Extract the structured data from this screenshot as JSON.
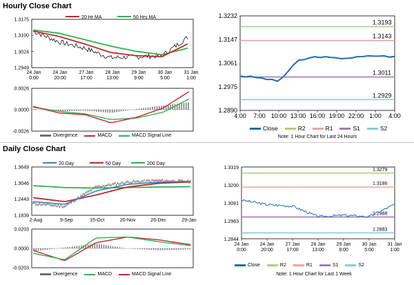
{
  "hourly": {
    "title": "Hourly Close Chart",
    "price": {
      "legend": [
        {
          "name": "20 Hr MA",
          "color": "#c0262d"
        },
        {
          "name": "50 Hrs MA",
          "color": "#2fb04e"
        }
      ],
      "y_ticks": [
        "1.3175",
        "1.3100",
        "1.3024",
        "1.2949"
      ],
      "ylim": [
        1.2949,
        1.3175
      ],
      "x_ticks": [
        [
          "24 Jan",
          "0:00"
        ],
        [
          "24 Jan",
          "20:00"
        ],
        [
          "27 Jan",
          "17:00"
        ],
        [
          "28 Jan",
          "13:00"
        ],
        [
          "29 Jan",
          "9:00"
        ],
        [
          "30 Jan",
          "5:00"
        ],
        [
          "31 Jan",
          "1:00"
        ]
      ]
    },
    "macd": {
      "y_ticks": [
        "0.0026",
        "0.0000",
        "-0.0026"
      ],
      "ylim": [
        -0.0026,
        0.0026
      ],
      "legend": [
        {
          "name": "Divergence",
          "color": "#6e6e6e"
        },
        {
          "name": "MACD",
          "color": "#c0262d"
        },
        {
          "name": "MACD Signal Line",
          "color": "#2fb04e"
        }
      ]
    },
    "pivot": {
      "y_ticks": [
        "1.3232",
        "1.3147",
        "1.3061",
        "1.2975",
        "1.2890"
      ],
      "ylim": [
        1.289,
        1.3232
      ],
      "x_ticks": [
        "4:00",
        "7:00",
        "10:00",
        "13:00",
        "16:00",
        "19:00",
        "22:00",
        "1:00",
        "4:00"
      ],
      "levels": [
        {
          "name": "R2",
          "value": 1.3193,
          "label": "1.3193",
          "color": "#a9cf7e"
        },
        {
          "name": "R1",
          "value": 1.3143,
          "label": "1.3143",
          "color": "#e8a6a0"
        },
        {
          "name": "S1",
          "value": 1.3011,
          "label": "1.3011",
          "color": "#9a7fbd"
        },
        {
          "name": "S2",
          "value": 1.2929,
          "label": "1.2929",
          "color": "#8ac8de"
        }
      ],
      "close_color": "#1f6cb0",
      "legend": [
        "Close",
        "R2",
        "R1",
        "S1",
        "S2"
      ],
      "note": "Note: 1 Hour Chart for Last 24 Hours"
    }
  },
  "daily": {
    "title": "Daily Close Chart",
    "price": {
      "legend": [
        {
          "name": "20 Day",
          "color": "#3e7ec2"
        },
        {
          "name": "50 Day",
          "color": "#c0262d"
        },
        {
          "name": "200 Day",
          "color": "#2fb04e"
        }
      ],
      "y_ticks": [
        "1.3649",
        "1.3046",
        "1.2443",
        "1.1839"
      ],
      "ylim": [
        1.1839,
        1.3649
      ],
      "x_ticks": [
        "2-Aug",
        "9-Sep",
        "15-Oct",
        "20-Nov",
        "26-Dec",
        "29-Jan"
      ]
    },
    "macd": {
      "y_ticks": [
        "0.0203",
        "0.0000",
        "-0.0203"
      ],
      "ylim": [
        -0.0203,
        0.0203
      ],
      "legend": [
        {
          "name": "Divergence",
          "color": "#6e6e6e"
        },
        {
          "name": "MACD",
          "color": "#2fb04e"
        },
        {
          "name": "MACD Signal Line",
          "color": "#c0262d"
        }
      ]
    },
    "pivot": {
      "y_ticks": [
        "1.3319",
        "1.3200",
        "1.3081",
        "1.2963",
        "1.2844"
      ],
      "ylim": [
        1.2844,
        1.3319
      ],
      "x_ticks": [
        [
          "24 Jan",
          "0:00"
        ],
        [
          "24 Jan",
          "20:00"
        ],
        [
          "27 Jan",
          "17:00"
        ],
        [
          "28 Jan",
          "13:00"
        ],
        [
          "29 Jan",
          "9:00"
        ],
        [
          "30 Jan",
          "5:00"
        ],
        [
          "31 Jan",
          "1:00"
        ]
      ],
      "levels": [
        {
          "name": "R2",
          "value": 1.3279,
          "label": "1.3279",
          "color": "#a9cf7e"
        },
        {
          "name": "R1",
          "value": 1.3186,
          "label": "1.3186",
          "color": "#e8a6a0"
        },
        {
          "name": "S1",
          "value": 1.2988,
          "label": "1.2988",
          "color": "#9a7fbd"
        },
        {
          "name": "S2",
          "value": 1.2883,
          "label": "1.2883",
          "color": "#8ac8de"
        }
      ],
      "close_color": "#1f6cb0",
      "legend": [
        "Close",
        "R2",
        "R1",
        "S1",
        "S2"
      ],
      "note": "Note: 1 Hour Chart for Last 1 Week"
    }
  },
  "chart_data": [
    {
      "type": "line",
      "xlabel": "",
      "ylabel": "",
      "x": [
        "24 Jan 0:00",
        "24 Jan 20:00",
        "27 Jan 17:00",
        "28 Jan 13:00",
        "29 Jan 9:00",
        "30 Jan 5:00",
        "31 Jan 1:00"
      ],
      "series": [
        {
          "name": "",
          "values": [
            1.312,
            1.307,
            1.304,
            1.2995,
            1.3,
            1.3005,
            1.309
          ]
        },
        {
          "name": "20 Hr MA",
          "values": [
            1.312,
            1.3095,
            1.306,
            1.302,
            1.3005,
            1.3,
            1.306
          ]
        },
        {
          "name": "50 Hrs MA",
          "values": [
            1.3125,
            1.311,
            1.308,
            1.305,
            1.3025,
            1.301,
            1.304
          ]
        }
      ],
      "ylim": [
        1.2949,
        1.3175
      ]
    },
    {
      "type": "line",
      "xlabel": "",
      "ylabel": "",
      "x": [
        "24 Jan 0:00",
        "24 Jan 20:00",
        "27 Jan 17:00",
        "28 Jan 13:00",
        "29 Jan 9:00",
        "30 Jan 5:00",
        "31 Jan 1:00"
      ],
      "series": [
        {
          "name": "MACD",
          "values": [
            0.0004,
            -0.0004,
            -0.0006,
            -0.0016,
            -0.0009,
            0.0002,
            0.0022
          ]
        },
        {
          "name": "MACD Signal Line",
          "values": [
            0.0003,
            -0.0002,
            -0.0005,
            -0.0012,
            -0.001,
            -0.0003,
            0.0013
          ]
        },
        {
          "name": "Divergence",
          "values": [
            0.0001,
            -0.0002,
            -0.0001,
            -0.0004,
            0.0001,
            0.0005,
            0.0009
          ]
        }
      ],
      "ylim": [
        -0.0026,
        0.0026
      ]
    },
    {
      "type": "line",
      "xlabel": "",
      "ylabel": "",
      "x": [
        "4:00",
        "7:00",
        "10:00",
        "13:00",
        "16:00",
        "19:00",
        "22:00",
        "1:00",
        "4:00"
      ],
      "series": [
        {
          "name": "Close",
          "values": [
            1.3015,
            1.3008,
            1.2995,
            1.307,
            1.3085,
            1.3078,
            1.3082,
            1.3088,
            1.3084
          ]
        },
        {
          "name": "R2",
          "values": [
            1.3193,
            1.3193,
            1.3193,
            1.3193,
            1.3193,
            1.3193,
            1.3193,
            1.3193,
            1.3193
          ]
        },
        {
          "name": "R1",
          "values": [
            1.3143,
            1.3143,
            1.3143,
            1.3143,
            1.3143,
            1.3143,
            1.3143,
            1.3143,
            1.3143
          ]
        },
        {
          "name": "S1",
          "values": [
            1.3011,
            1.3011,
            1.3011,
            1.3011,
            1.3011,
            1.3011,
            1.3011,
            1.3011,
            1.3011
          ]
        },
        {
          "name": "S2",
          "values": [
            1.2929,
            1.2929,
            1.2929,
            1.2929,
            1.2929,
            1.2929,
            1.2929,
            1.2929,
            1.2929
          ]
        }
      ],
      "ylim": [
        1.289,
        1.3232
      ]
    },
    {
      "type": "line",
      "xlabel": "",
      "ylabel": "",
      "x": [
        "2-Aug",
        "9-Sep",
        "15-Oct",
        "20-Nov",
        "26-Dec",
        "29-Jan"
      ],
      "series": [
        {
          "name": "",
          "values": [
            1.228,
            1.217,
            1.29,
            1.308,
            1.314,
            1.31
          ]
        },
        {
          "name": "20 Day",
          "values": [
            1.235,
            1.225,
            1.275,
            1.3,
            1.308,
            1.311
          ]
        },
        {
          "name": "50 Day",
          "values": [
            1.25,
            1.235,
            1.26,
            1.29,
            1.304,
            1.309
          ]
        },
        {
          "name": "200 Day",
          "values": [
            1.295,
            1.288,
            1.286,
            1.288,
            1.29,
            1.291
          ]
        }
      ],
      "ylim": [
        1.1839,
        1.3649
      ]
    },
    {
      "type": "line",
      "xlabel": "",
      "ylabel": "",
      "x": [
        "2-Aug",
        "9-Sep",
        "15-Oct",
        "20-Nov",
        "26-Dec",
        "29-Jan"
      ],
      "series": [
        {
          "name": "MACD",
          "values": [
            -0.005,
            -0.012,
            0.011,
            0.012,
            0.007,
            0.003
          ]
        },
        {
          "name": "MACD Signal Line",
          "values": [
            -0.002,
            -0.013,
            0.006,
            0.012,
            0.009,
            0.004
          ]
        },
        {
          "name": "Divergence",
          "values": [
            -0.003,
            0.001,
            0.005,
            0.0,
            -0.002,
            -0.001
          ]
        }
      ],
      "ylim": [
        -0.0203,
        0.0203
      ]
    },
    {
      "type": "line",
      "xlabel": "",
      "ylabel": "",
      "x": [
        "24 Jan 0:00",
        "24 Jan 20:00",
        "27 Jan 17:00",
        "28 Jan 13:00",
        "29 Jan 9:00",
        "30 Jan 5:00",
        "31 Jan 1:00"
      ],
      "series": [
        {
          "name": "Close",
          "values": [
            1.31,
            1.307,
            1.306,
            1.299,
            1.3,
            1.299,
            1.3072
          ]
        },
        {
          "name": "R2",
          "values": [
            1.3279,
            1.3279,
            1.3279,
            1.3279,
            1.3279,
            1.3279,
            1.3279
          ]
        },
        {
          "name": "R1",
          "values": [
            1.3186,
            1.3186,
            1.3186,
            1.3186,
            1.3186,
            1.3186,
            1.3186
          ]
        },
        {
          "name": "S1",
          "values": [
            1.2988,
            1.2988,
            1.2988,
            1.2988,
            1.2988,
            1.2988,
            1.2988
          ]
        },
        {
          "name": "S2",
          "values": [
            1.2883,
            1.2883,
            1.2883,
            1.2883,
            1.2883,
            1.2883,
            1.2883
          ]
        }
      ],
      "ylim": [
        1.2844,
        1.3319
      ]
    }
  ]
}
